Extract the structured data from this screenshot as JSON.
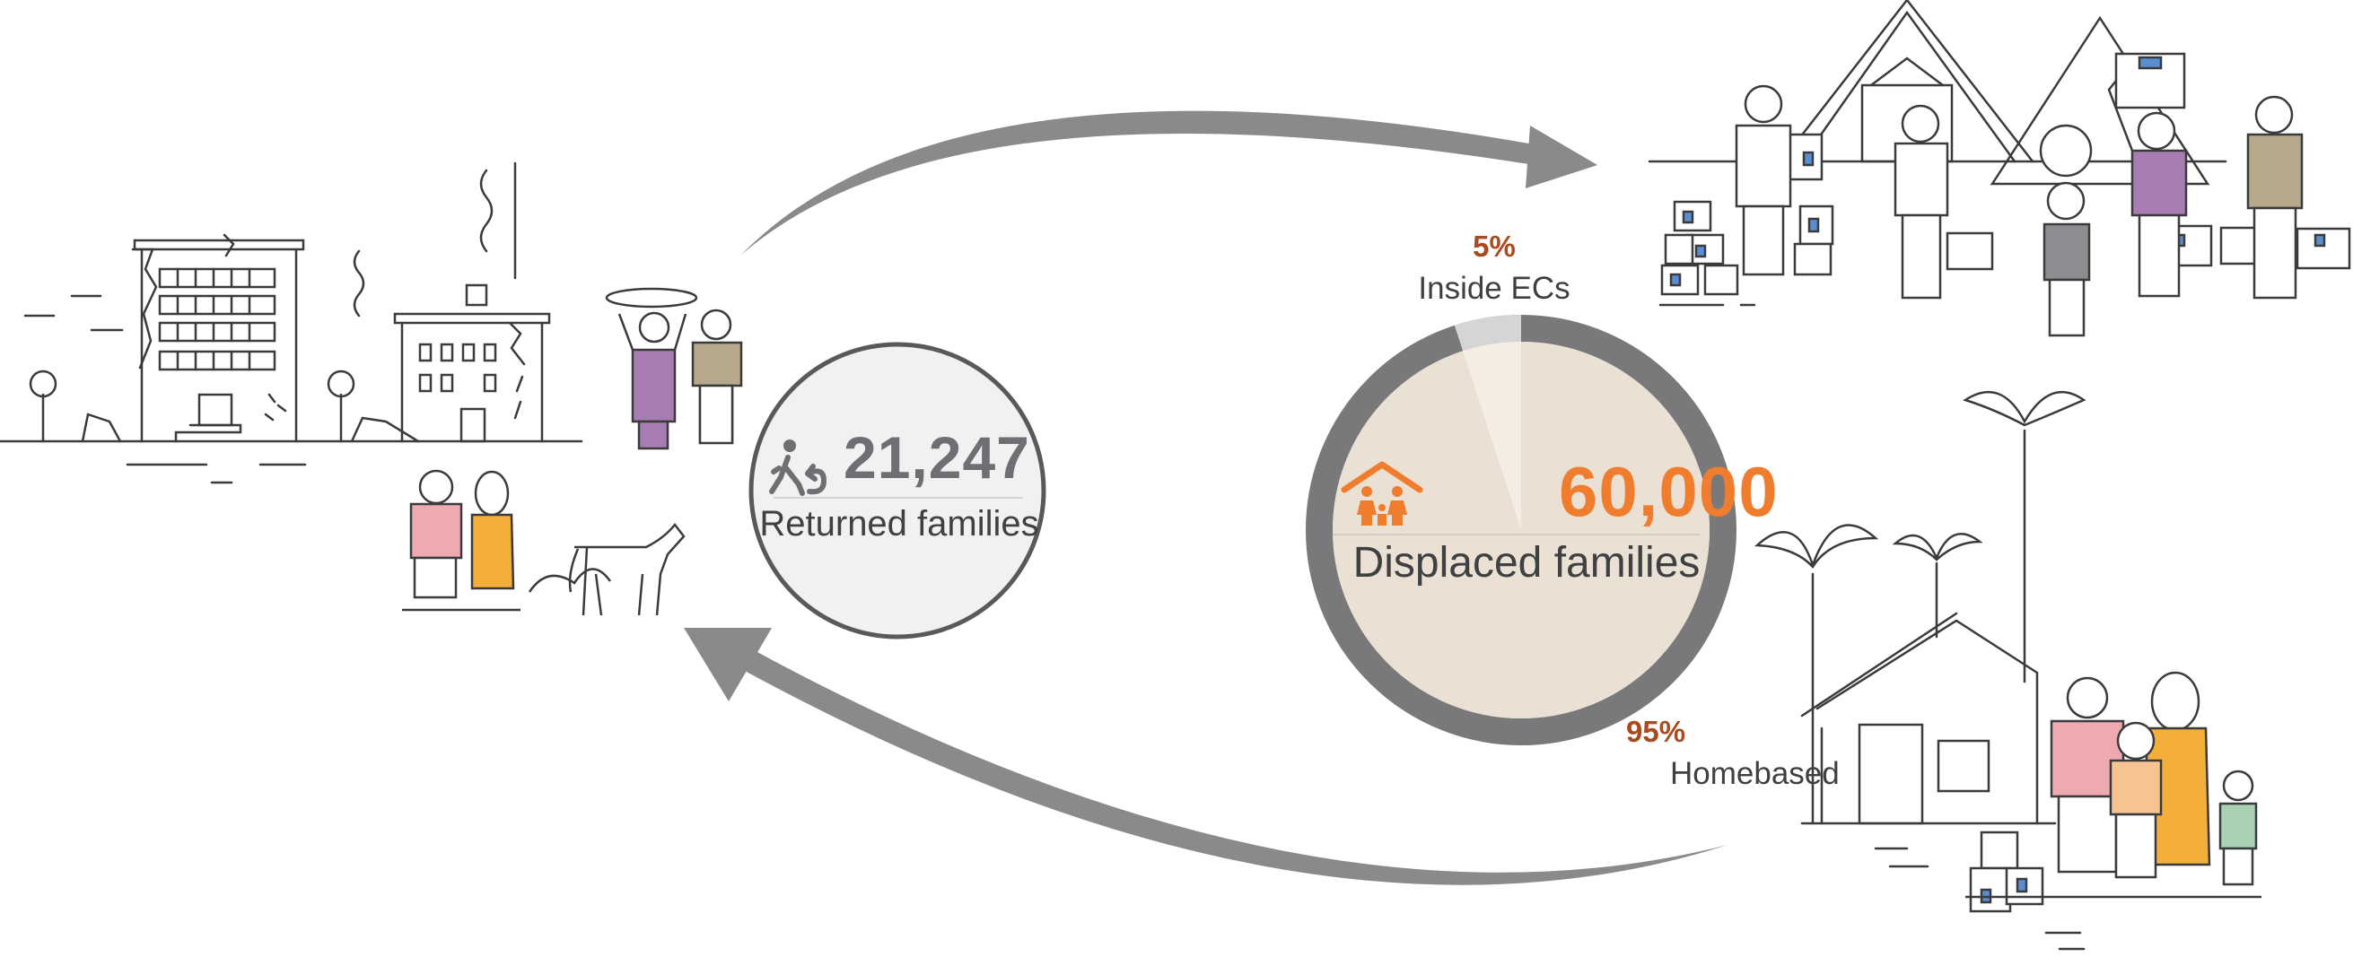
{
  "returned": {
    "value": "21,247",
    "label": "Returned families",
    "icon": "walking-return-icon"
  },
  "displaced": {
    "value": "60,000",
    "label": "Displaced families",
    "icon": "family-shelter-icon"
  },
  "breakdown": [
    {
      "percent": "5%",
      "label": "Inside ECs",
      "share": 0.05
    },
    {
      "percent": "95%",
      "label": "Homebased",
      "share": 0.95
    }
  ],
  "colors": {
    "ring": "#79797c",
    "ring_inner": "#eae0d3",
    "ec_slice": "#d4d5d7",
    "ec_slice_inner": "#f5ede3",
    "accent": "#f07d2e",
    "percent_text": "#a94a1f",
    "arrow": "#8a8a8c",
    "returned_circle_fill": "#f1f1f2",
    "returned_circle_stroke": "#58595b",
    "pink": "#eeaab0",
    "purple": "#a77db3",
    "yellow": "#f4ae3a",
    "khaki": "#b6a88b",
    "teal": "#a9d2b5",
    "peach": "#f6c491",
    "blue": "#5b8ed0",
    "grey": "#8c8d90"
  }
}
